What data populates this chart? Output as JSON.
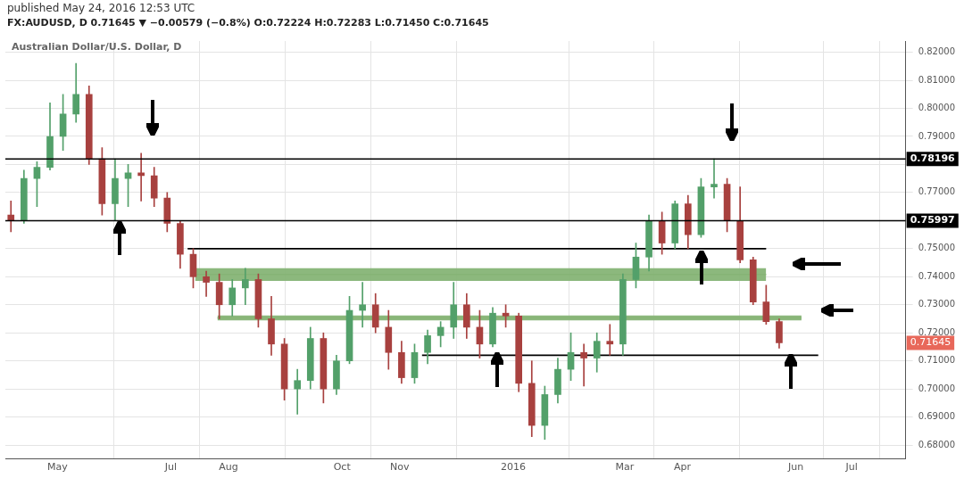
{
  "chart_data": {
    "type": "candlestick",
    "title": "FX:AUDUSD, D 0.71645 ▼ −0.00579 (−0.8%) O:0.72224 H:0.72283 L:0.71450 C:0.71645",
    "subtitle": "Australian Dollar/U.S. Dollar, D",
    "annotations": [
      "published May 24, 2016 12:53 UTC",
      "0.71645"
    ],
    "x": [
      "2015-04-06",
      "2015-04-13",
      "2015-04-20",
      "2015-04-27",
      "2015-05-04",
      "2015-05-11",
      "2015-05-18",
      "2015-05-25",
      "2015-06-01",
      "2015-06-08",
      "2015-06-15",
      "2015-06-22",
      "2015-06-29",
      "2015-07-06",
      "2015-07-13",
      "2015-07-20",
      "2015-07-27",
      "2015-08-03",
      "2015-08-10",
      "2015-08-17",
      "2015-08-24",
      "2015-08-31",
      "2015-09-07",
      "2015-09-14",
      "2015-09-21",
      "2015-09-28",
      "2015-10-05",
      "2015-10-12",
      "2015-10-19",
      "2015-10-26",
      "2015-11-02",
      "2015-11-09",
      "2015-11-16",
      "2015-11-23",
      "2015-11-30",
      "2015-12-07",
      "2015-12-14",
      "2015-12-21",
      "2015-12-28",
      "2016-01-04",
      "2016-01-11",
      "2016-01-18",
      "2016-01-25",
      "2016-02-01",
      "2016-02-08",
      "2016-02-15",
      "2016-02-22",
      "2016-02-29",
      "2016-03-07",
      "2016-03-14",
      "2016-03-21",
      "2016-03-28",
      "2016-04-04",
      "2016-04-11",
      "2016-04-18",
      "2016-04-25",
      "2016-05-02",
      "2016-05-09",
      "2016-05-16",
      "2016-05-23"
    ],
    "ohlc": [
      [
        0.762,
        0.767,
        0.756,
        0.76
      ],
      [
        0.76,
        0.778,
        0.759,
        0.775
      ],
      [
        0.775,
        0.781,
        0.765,
        0.779
      ],
      [
        0.779,
        0.802,
        0.778,
        0.79
      ],
      [
        0.79,
        0.805,
        0.785,
        0.798
      ],
      [
        0.798,
        0.816,
        0.795,
        0.805
      ],
      [
        0.805,
        0.808,
        0.78,
        0.782
      ],
      [
        0.782,
        0.786,
        0.762,
        0.766
      ],
      [
        0.766,
        0.782,
        0.76,
        0.775
      ],
      [
        0.775,
        0.78,
        0.765,
        0.777
      ],
      [
        0.777,
        0.784,
        0.767,
        0.776
      ],
      [
        0.776,
        0.779,
        0.765,
        0.768
      ],
      [
        0.768,
        0.77,
        0.756,
        0.759
      ],
      [
        0.759,
        0.76,
        0.743,
        0.748
      ],
      [
        0.748,
        0.75,
        0.736,
        0.74
      ],
      [
        0.74,
        0.742,
        0.733,
        0.738
      ],
      [
        0.738,
        0.741,
        0.725,
        0.73
      ],
      [
        0.73,
        0.739,
        0.726,
        0.736
      ],
      [
        0.736,
        0.743,
        0.73,
        0.739
      ],
      [
        0.739,
        0.741,
        0.722,
        0.725
      ],
      [
        0.725,
        0.733,
        0.712,
        0.716
      ],
      [
        0.716,
        0.718,
        0.696,
        0.7
      ],
      [
        0.7,
        0.707,
        0.691,
        0.703
      ],
      [
        0.703,
        0.722,
        0.7,
        0.718
      ],
      [
        0.718,
        0.72,
        0.695,
        0.7
      ],
      [
        0.7,
        0.712,
        0.698,
        0.71
      ],
      [
        0.71,
        0.733,
        0.709,
        0.728
      ],
      [
        0.728,
        0.738,
        0.722,
        0.73
      ],
      [
        0.73,
        0.734,
        0.72,
        0.722
      ],
      [
        0.722,
        0.728,
        0.707,
        0.713
      ],
      [
        0.713,
        0.717,
        0.702,
        0.704
      ],
      [
        0.704,
        0.716,
        0.702,
        0.713
      ],
      [
        0.713,
        0.721,
        0.709,
        0.719
      ],
      [
        0.719,
        0.724,
        0.715,
        0.722
      ],
      [
        0.722,
        0.738,
        0.718,
        0.73
      ],
      [
        0.73,
        0.734,
        0.718,
        0.722
      ],
      [
        0.722,
        0.728,
        0.711,
        0.716
      ],
      [
        0.716,
        0.729,
        0.715,
        0.727
      ],
      [
        0.727,
        0.73,
        0.722,
        0.726
      ],
      [
        0.726,
        0.727,
        0.699,
        0.702
      ],
      [
        0.702,
        0.71,
        0.683,
        0.687
      ],
      [
        0.687,
        0.701,
        0.682,
        0.698
      ],
      [
        0.698,
        0.711,
        0.695,
        0.707
      ],
      [
        0.707,
        0.72,
        0.703,
        0.713
      ],
      [
        0.713,
        0.716,
        0.701,
        0.711
      ],
      [
        0.711,
        0.72,
        0.706,
        0.717
      ],
      [
        0.717,
        0.723,
        0.712,
        0.716
      ],
      [
        0.716,
        0.741,
        0.712,
        0.739
      ],
      [
        0.739,
        0.752,
        0.736,
        0.747
      ],
      [
        0.747,
        0.762,
        0.742,
        0.76
      ],
      [
        0.76,
        0.763,
        0.748,
        0.752
      ],
      [
        0.752,
        0.767,
        0.75,
        0.766
      ],
      [
        0.766,
        0.769,
        0.75,
        0.755
      ],
      [
        0.755,
        0.775,
        0.754,
        0.772
      ],
      [
        0.772,
        0.782,
        0.768,
        0.773
      ],
      [
        0.773,
        0.775,
        0.756,
        0.76
      ],
      [
        0.76,
        0.772,
        0.745,
        0.746
      ],
      [
        0.746,
        0.747,
        0.73,
        0.731
      ],
      [
        0.731,
        0.737,
        0.723,
        0.724
      ],
      [
        0.724,
        0.725,
        0.7145,
        0.71645
      ]
    ],
    "colors": [
      "#a8413f",
      "#53a06a",
      "#53a06a",
      "#53a06a",
      "#53a06a",
      "#53a06a",
      "#a8413f",
      "#a8413f",
      "#53a06a",
      "#53a06a",
      "#a8413f",
      "#a8413f",
      "#a8413f",
      "#a8413f",
      "#a8413f",
      "#a8413f",
      "#a8413f",
      "#53a06a",
      "#53a06a",
      "#a8413f",
      "#a8413f",
      "#a8413f",
      "#53a06a",
      "#53a06a",
      "#a8413f",
      "#53a06a",
      "#53a06a",
      "#53a06a",
      "#a8413f",
      "#a8413f",
      "#a8413f",
      "#53a06a",
      "#53a06a",
      "#53a06a",
      "#53a06a",
      "#a8413f",
      "#a8413f",
      "#53a06a",
      "#a8413f",
      "#a8413f",
      "#a8413f",
      "#53a06a",
      "#53a06a",
      "#53a06a",
      "#a8413f",
      "#53a06a",
      "#a8413f",
      "#53a06a",
      "#53a06a",
      "#53a06a",
      "#a8413f",
      "#53a06a",
      "#a8413f",
      "#53a06a",
      "#53a06a",
      "#a8413f",
      "#a8413f",
      "#a8413f",
      "#a8413f",
      "#a8413f"
    ],
    "series": [
      {
        "type": "line",
        "x": [
          "2015-07-14",
          "2016-05-16"
        ],
        "values": [
          0.7408,
          0.7408
        ],
        "lower": [
          0.7385,
          0.7385
        ],
        "upper": [
          0.743,
          0.743
        ],
        "color": "#86b476"
      },
      {
        "type": "line",
        "x": [
          "2015-07-26",
          "2016-06-04"
        ],
        "values": [
          0.7253,
          0.7253
        ],
        "lower": [
          0.7244,
          0.7244
        ],
        "upper": [
          0.7262,
          0.7262
        ],
        "color": "#86b476"
      },
      {
        "type": "line",
        "x": [
          "2015-07-10",
          "2016-05-16"
        ],
        "values": [
          0.75,
          0.75
        ],
        "color": "#000000"
      },
      {
        "type": "line",
        "x": [
          "2015-11-13",
          "2016-06-13"
        ],
        "values": [
          0.712,
          0.712
        ],
        "color": "#000000"
      }
    ],
    "ref_lines": [
      {
        "axis": "y",
        "value": 0.78196,
        "label": "0.78196",
        "color": "#000000"
      },
      {
        "axis": "y",
        "value": 0.75997,
        "label": "0.75997",
        "color": "#000000"
      }
    ],
    "xlim": [
      "2015-04-03",
      "2016-07-30"
    ],
    "xticks": [
      {
        "value": "2015-05-01",
        "label": "May"
      },
      {
        "value": "2015-07-01",
        "label": "Jul"
      },
      {
        "value": "2015-08-01",
        "label": "Aug"
      },
      {
        "value": "2015-10-01",
        "label": "Oct"
      },
      {
        "value": "2015-11-01",
        "label": "Nov"
      },
      {
        "value": "2016-01-01",
        "label": "2016"
      },
      {
        "value": "2016-03-01",
        "label": "Mar"
      },
      {
        "value": "2016-04-01",
        "label": "Apr"
      },
      {
        "value": "2016-06-01",
        "label": "Jun"
      },
      {
        "value": "2016-07-01",
        "label": "Jul"
      }
    ],
    "ylim": [
      0.675,
      0.824
    ],
    "yticks": [
      {
        "value": 0.68,
        "label": "0.68000"
      },
      {
        "value": 0.69,
        "label": "0.69000"
      },
      {
        "value": 0.7,
        "label": "0.70000"
      },
      {
        "value": 0.71,
        "label": "0.71000"
      },
      {
        "value": 0.72,
        "label": "0.72000"
      },
      {
        "value": 0.73,
        "label": "0.73000"
      },
      {
        "value": 0.74,
        "label": "0.74000"
      },
      {
        "value": 0.75,
        "label": "0.75000"
      },
      {
        "value": 0.76,
        "label": null
      },
      {
        "value": 0.77,
        "label": "0.77000"
      },
      {
        "value": 0.78,
        "label": null
      },
      {
        "value": 0.79,
        "label": "0.79000"
      },
      {
        "value": 0.8,
        "label": "0.80000"
      },
      {
        "value": 0.81,
        "label": "0.81000"
      },
      {
        "value": 0.82,
        "label": "0.82000"
      }
    ],
    "grid": true,
    "legend": false
  }
}
